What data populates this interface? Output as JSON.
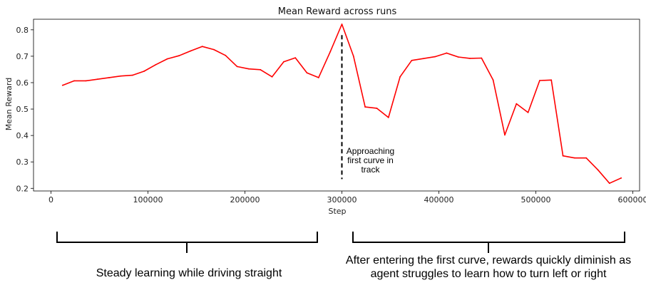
{
  "chart_data": {
    "type": "line",
    "title": "Mean Reward across runs",
    "xlabel": "Step",
    "ylabel": "Mean Reward",
    "xlim": [
      -18000,
      607000
    ],
    "ylim": [
      0.19,
      0.84
    ],
    "xticks": [
      0,
      100000,
      200000,
      300000,
      400000,
      500000,
      600000
    ],
    "xtick_labels": [
      "0",
      "100000",
      "200000",
      "300000",
      "400000",
      "500000",
      "600000"
    ],
    "yticks": [
      0.2,
      0.3,
      0.4,
      0.5,
      0.6,
      0.7,
      0.8
    ],
    "ytick_labels": [
      "0.2",
      "0.3",
      "0.4",
      "0.5",
      "0.6",
      "0.7",
      "0.8"
    ],
    "grid": false,
    "series": [
      {
        "color": "#ff0000",
        "x": [
          12000,
          24000,
          36000,
          48000,
          60000,
          72000,
          84000,
          96000,
          108000,
          120000,
          132000,
          144000,
          156000,
          168000,
          180000,
          192000,
          204000,
          216000,
          228000,
          240000,
          252000,
          264000,
          276000,
          288000,
          300000,
          312000,
          324000,
          336000,
          348000,
          360000,
          372000,
          384000,
          396000,
          408000,
          420000,
          432000,
          444000,
          456000,
          468000,
          480000,
          492000,
          504000,
          516000,
          528000,
          540000,
          552000,
          564000,
          576000,
          588000
        ],
        "y": [
          0.59,
          0.607,
          0.607,
          0.613,
          0.619,
          0.625,
          0.628,
          0.643,
          0.668,
          0.69,
          0.702,
          0.72,
          0.737,
          0.725,
          0.703,
          0.661,
          0.652,
          0.649,
          0.622,
          0.679,
          0.694,
          0.637,
          0.619,
          0.717,
          0.821,
          0.7,
          0.508,
          0.503,
          0.468,
          0.622,
          0.684,
          0.691,
          0.698,
          0.712,
          0.697,
          0.692,
          0.693,
          0.61,
          0.402,
          0.52,
          0.487,
          0.608,
          0.61,
          0.323,
          0.315,
          0.315,
          0.27,
          0.219,
          0.239
        ]
      }
    ],
    "annotations": [
      {
        "text_lines": [
          "Approaching",
          "first curve in",
          "track"
        ],
        "x": 300000,
        "y_from": 0.235,
        "y_to": 0.78,
        "style": "dashed vertical line"
      }
    ]
  },
  "brackets": {
    "left_text": "Steady learning while driving straight",
    "right_text": "After entering the first curve, rewards quickly diminish as agent struggles to learn how to turn left or right"
  }
}
